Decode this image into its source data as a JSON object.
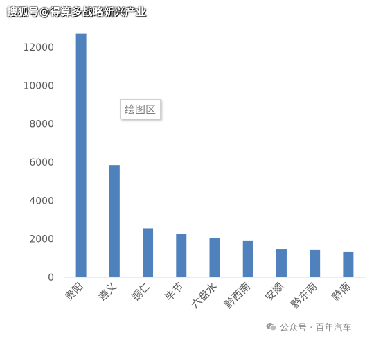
{
  "watermark_top": "搜狐号@得算多战略新兴产业",
  "tooltip": "绘图区",
  "watermark_bottom": "公众号 · 百年汽车",
  "colors": {
    "bar": "#4f81bd",
    "axis_text": "#595959",
    "axis_line": "#d9d9d9"
  },
  "icons": {
    "wechat": "wechat-icon"
  },
  "chart_data": {
    "type": "bar",
    "title": "",
    "xlabel": "",
    "ylabel": "",
    "categories": [
      "贵阳",
      "遵义",
      "铜仁",
      "毕节",
      "六盘水",
      "黔西南",
      "安顺",
      "黔东南",
      "黔南"
    ],
    "values": [
      12700,
      5850,
      2550,
      2250,
      2050,
      1920,
      1480,
      1450,
      1340
    ],
    "ylim": [
      0,
      12000
    ],
    "yticks": [
      0,
      2000,
      4000,
      6000,
      8000,
      10000,
      12000
    ],
    "grid": false,
    "legend": "none"
  }
}
